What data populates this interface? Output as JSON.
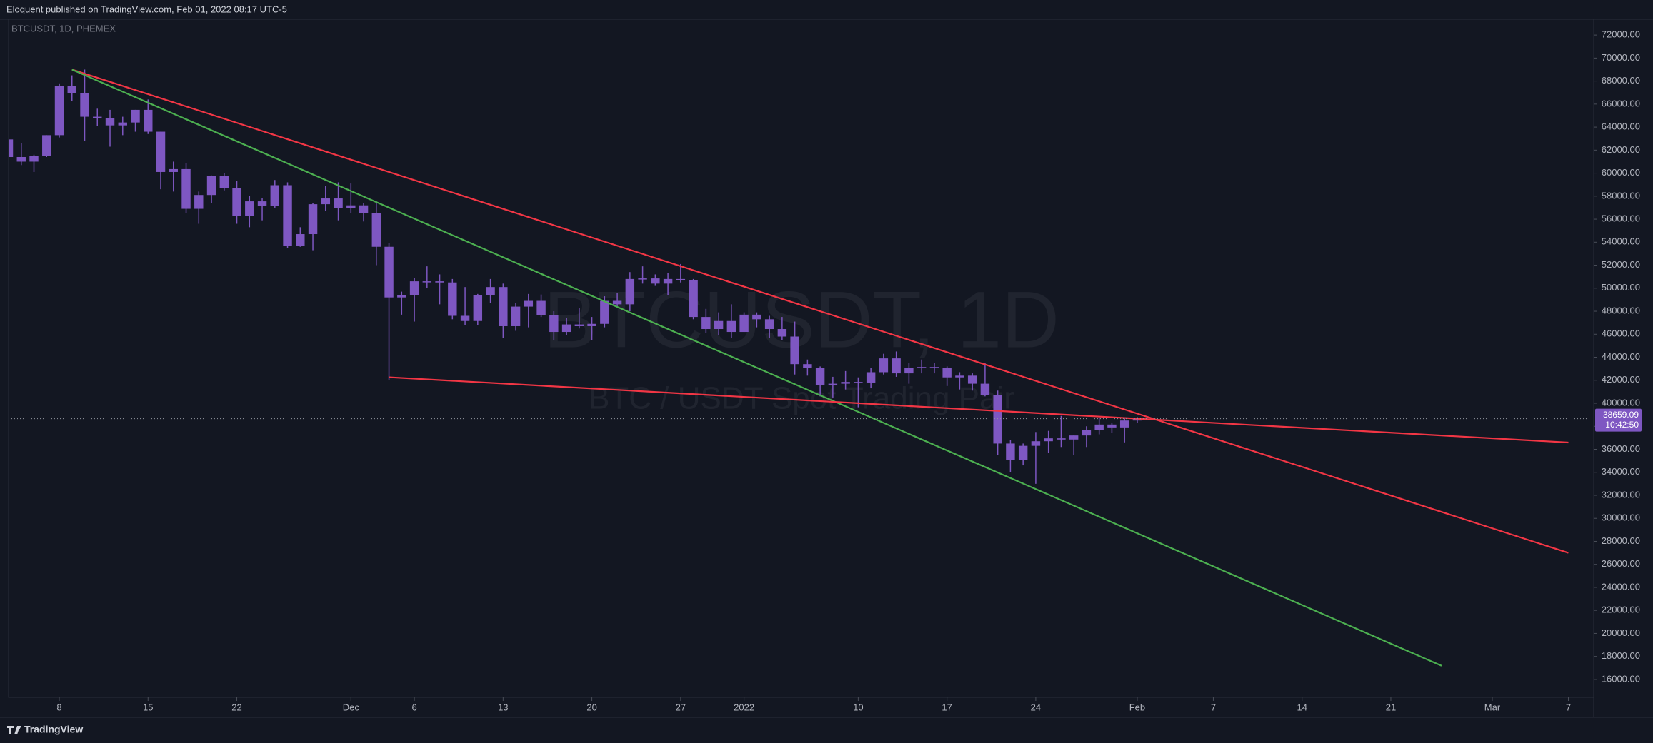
{
  "header": {
    "text": "Eloquent published on TradingView.com, Feb 01, 2022 08:17 UTC-5"
  },
  "footer": {
    "brand": "TradingView"
  },
  "chart_data": {
    "type": "candlestick",
    "title": "BTCUSDT, 1D, PHEMEX",
    "watermark": "BTCUSDT, 1D",
    "watermark_subtitle": "BTC / USDT Spot Trading Pair",
    "color": "#7e57c2",
    "x": [
      "2021-11-04",
      "2021-11-05",
      "2021-11-06",
      "2021-11-07",
      "2021-11-08",
      "2021-11-09",
      "2021-11-10",
      "2021-11-11",
      "2021-11-12",
      "2021-11-13",
      "2021-11-14",
      "2021-11-15",
      "2021-11-16",
      "2021-11-17",
      "2021-11-18",
      "2021-11-19",
      "2021-11-20",
      "2021-11-21",
      "2021-11-22",
      "2021-11-23",
      "2021-11-24",
      "2021-11-25",
      "2021-11-26",
      "2021-11-27",
      "2021-11-28",
      "2021-11-29",
      "2021-11-30",
      "2021-12-01",
      "2021-12-02",
      "2021-12-03",
      "2021-12-04",
      "2021-12-05",
      "2021-12-06",
      "2021-12-07",
      "2021-12-08",
      "2021-12-09",
      "2021-12-10",
      "2021-12-11",
      "2021-12-12",
      "2021-12-13",
      "2021-12-14",
      "2021-12-15",
      "2021-12-16",
      "2021-12-17",
      "2021-12-18",
      "2021-12-19",
      "2021-12-20",
      "2021-12-21",
      "2021-12-22",
      "2021-12-23",
      "2021-12-24",
      "2021-12-25",
      "2021-12-26",
      "2021-12-27",
      "2021-12-28",
      "2021-12-29",
      "2021-12-30",
      "2021-12-31",
      "2022-01-01",
      "2022-01-02",
      "2022-01-03",
      "2022-01-04",
      "2022-01-05",
      "2022-01-06",
      "2022-01-07",
      "2022-01-08",
      "2022-01-09",
      "2022-01-10",
      "2022-01-11",
      "2022-01-12",
      "2022-01-13",
      "2022-01-14",
      "2022-01-15",
      "2022-01-16",
      "2022-01-17",
      "2022-01-18",
      "2022-01-19",
      "2022-01-20",
      "2022-01-21",
      "2022-01-22",
      "2022-01-23",
      "2022-01-24",
      "2022-01-25",
      "2022-01-26",
      "2022-01-27",
      "2022-01-28",
      "2022-01-29",
      "2022-01-30",
      "2022-01-31",
      "2022-02-01"
    ],
    "open": [
      62930,
      61400,
      61000,
      61500,
      63300,
      67550,
      66950,
      64900,
      64800,
      64150,
      64400,
      65500,
      63600,
      60100,
      60350,
      56900,
      58100,
      59750,
      58700,
      56300,
      57550,
      57150,
      58950,
      53700,
      54700,
      57300,
      57800,
      56950,
      57200,
      56500,
      53600,
      49200,
      49400,
      50600,
      50600,
      50500,
      47600,
      47150,
      49400,
      50100,
      46700,
      48400,
      48900,
      47650,
      46200,
      46850,
      46700,
      46900,
      48900,
      48600,
      50800,
      50850,
      50400,
      50800,
      50700,
      47500,
      46450,
      47150,
      46200,
      47700,
      47300,
      46450,
      45800,
      43400,
      43100,
      41550,
      41700,
      41850,
      41800,
      42700,
      43900,
      42600,
      43100,
      43150,
      43100,
      42250,
      42400,
      41700,
      40700,
      36500,
      35100,
      36300,
      36700,
      36950,
      36850,
      37200,
      37700,
      38150,
      37900,
      38500
    ],
    "high": [
      63100,
      62600,
      61600,
      63300,
      67800,
      68500,
      69000,
      65600,
      65500,
      64900,
      65500,
      66400,
      63600,
      61000,
      60900,
      58400,
      59800,
      60000,
      59300,
      58000,
      57800,
      59400,
      59200,
      55300,
      57400,
      58900,
      59200,
      59100,
      57400,
      57600,
      53900,
      49700,
      50900,
      51900,
      51200,
      50800,
      50100,
      49500,
      50800,
      50400,
      48700,
      49500,
      49450,
      48000,
      47400,
      48300,
      47500,
      49300,
      49600,
      51400,
      51900,
      51200,
      51300,
      52100,
      50800,
      48200,
      47900,
      48600,
      47900,
      47900,
      47600,
      47500,
      47100,
      43800,
      43200,
      42300,
      42800,
      42250,
      43100,
      44300,
      44500,
      43500,
      43800,
      43500,
      43200,
      42700,
      42600,
      43500,
      41100,
      36800,
      36500,
      37500,
      37600,
      38900,
      37200,
      38000,
      38700,
      38300,
      38700,
      38800
    ],
    "low": [
      60700,
      60700,
      60100,
      61400,
      63100,
      66300,
      62800,
      64100,
      62300,
      63300,
      63600,
      63400,
      58600,
      58400,
      56500,
      55600,
      57400,
      58500,
      55600,
      55300,
      55900,
      57000,
      53500,
      53600,
      53300,
      56700,
      55900,
      56500,
      55800,
      52000,
      42000,
      47700,
      47100,
      50000,
      48600,
      47300,
      46800,
      46800,
      48700,
      45700,
      46300,
      46600,
      47500,
      45500,
      45900,
      46500,
      45500,
      46600,
      48400,
      48000,
      50400,
      50200,
      49400,
      50500,
      47300,
      46100,
      45900,
      45700,
      46200,
      46600,
      45700,
      45500,
      42500,
      42400,
      40600,
      40500,
      41200,
      39650,
      41300,
      42500,
      42300,
      41700,
      42600,
      42600,
      41500,
      41200,
      41100,
      40600,
      35500,
      34000,
      34600,
      33000,
      35700,
      36200,
      35500,
      36200,
      37300,
      37400,
      36600,
      38300
    ],
    "close": [
      61400,
      61000,
      61500,
      63300,
      67550,
      66950,
      64900,
      64800,
      64150,
      64400,
      65500,
      63600,
      60100,
      60350,
      56900,
      58100,
      59750,
      58700,
      56300,
      57550,
      57150,
      58950,
      53700,
      54700,
      57300,
      57800,
      56950,
      57200,
      56500,
      53600,
      49200,
      49400,
      50600,
      50600,
      50500,
      47600,
      47150,
      49400,
      50100,
      46700,
      48400,
      48900,
      47650,
      46200,
      46850,
      46700,
      46900,
      48900,
      48600,
      50800,
      50850,
      50400,
      50800,
      50700,
      47500,
      46450,
      47150,
      46200,
      47700,
      47300,
      46450,
      45800,
      43400,
      43100,
      41550,
      41700,
      41850,
      41800,
      42700,
      43900,
      42600,
      43100,
      43150,
      43100,
      42250,
      42400,
      41700,
      40700,
      36500,
      35100,
      36300,
      36700,
      36950,
      36850,
      37200,
      37700,
      38150,
      37900,
      38500,
      38659.09
    ],
    "last_price": 38659.09,
    "countdown": "10:42:50",
    "xlim": [
      "2021-11-04",
      "2022-03-09"
    ],
    "ylim": [
      14444,
      73372
    ],
    "xticks": [
      {
        "value": "2021-11-08",
        "label": "8"
      },
      {
        "value": "2021-11-15",
        "label": "15"
      },
      {
        "value": "2021-11-22",
        "label": "22"
      },
      {
        "value": "2021-12-01",
        "label": "Dec"
      },
      {
        "value": "2021-12-06",
        "label": "6"
      },
      {
        "value": "2021-12-13",
        "label": "13"
      },
      {
        "value": "2021-12-20",
        "label": "20"
      },
      {
        "value": "2021-12-27",
        "label": "27"
      },
      {
        "value": "2022-01-01",
        "label": "2022"
      },
      {
        "value": "2022-01-10",
        "label": "10"
      },
      {
        "value": "2022-01-17",
        "label": "17"
      },
      {
        "value": "2022-01-24",
        "label": "24"
      },
      {
        "value": "2022-02-01",
        "label": "Feb"
      },
      {
        "value": "2022-02-07",
        "label": "7"
      },
      {
        "value": "2022-02-14",
        "label": "14"
      },
      {
        "value": "2022-02-21",
        "label": "21"
      },
      {
        "value": "2022-03-01",
        "label": "Mar"
      },
      {
        "value": "2022-03-07",
        "label": "7"
      }
    ],
    "yticks": [
      {
        "value": 72000,
        "label": "72000.00"
      },
      {
        "value": 70000,
        "label": "70000.00"
      },
      {
        "value": 68000,
        "label": "68000.00"
      },
      {
        "value": 66000,
        "label": "66000.00"
      },
      {
        "value": 64000,
        "label": "64000.00"
      },
      {
        "value": 62000,
        "label": "62000.00"
      },
      {
        "value": 60000,
        "label": "60000.00"
      },
      {
        "value": 58000,
        "label": "58000.00"
      },
      {
        "value": 56000,
        "label": "56000.00"
      },
      {
        "value": 54000,
        "label": "54000.00"
      },
      {
        "value": 52000,
        "label": "52000.00"
      },
      {
        "value": 50000,
        "label": "50000.00"
      },
      {
        "value": 48000,
        "label": "48000.00"
      },
      {
        "value": 46000,
        "label": "46000.00"
      },
      {
        "value": 44000,
        "label": "44000.00"
      },
      {
        "value": 42000,
        "label": "42000.00"
      },
      {
        "value": 40000,
        "label": "40000.00"
      },
      {
        "value": 38000,
        "label": "38000.00"
      },
      {
        "value": 36000,
        "label": "36000.00"
      },
      {
        "value": 34000,
        "label": "34000.00"
      },
      {
        "value": 32000,
        "label": "32000.00"
      },
      {
        "value": 30000,
        "label": "30000.00"
      },
      {
        "value": 28000,
        "label": "28000.00"
      },
      {
        "value": 26000,
        "label": "26000.00"
      },
      {
        "value": 24000,
        "label": "24000.00"
      },
      {
        "value": 22000,
        "label": "22000.00"
      },
      {
        "value": 20000,
        "label": "20000.00"
      },
      {
        "value": 18000,
        "label": "18000.00"
      },
      {
        "value": 16000,
        "label": "16000.00"
      }
    ],
    "drawings": [
      {
        "color": "#f23645",
        "points": [
          [
            "2021-11-09",
            69000
          ],
          [
            "2022-03-07",
            27000
          ]
        ]
      },
      {
        "color": "#4caf50",
        "points": [
          [
            "2021-11-09",
            69000
          ],
          [
            "2022-02-25",
            17190
          ]
        ]
      },
      {
        "color": "#f23645",
        "points": [
          [
            "2021-12-04",
            42260
          ],
          [
            "2022-03-07",
            36590
          ]
        ]
      }
    ]
  }
}
